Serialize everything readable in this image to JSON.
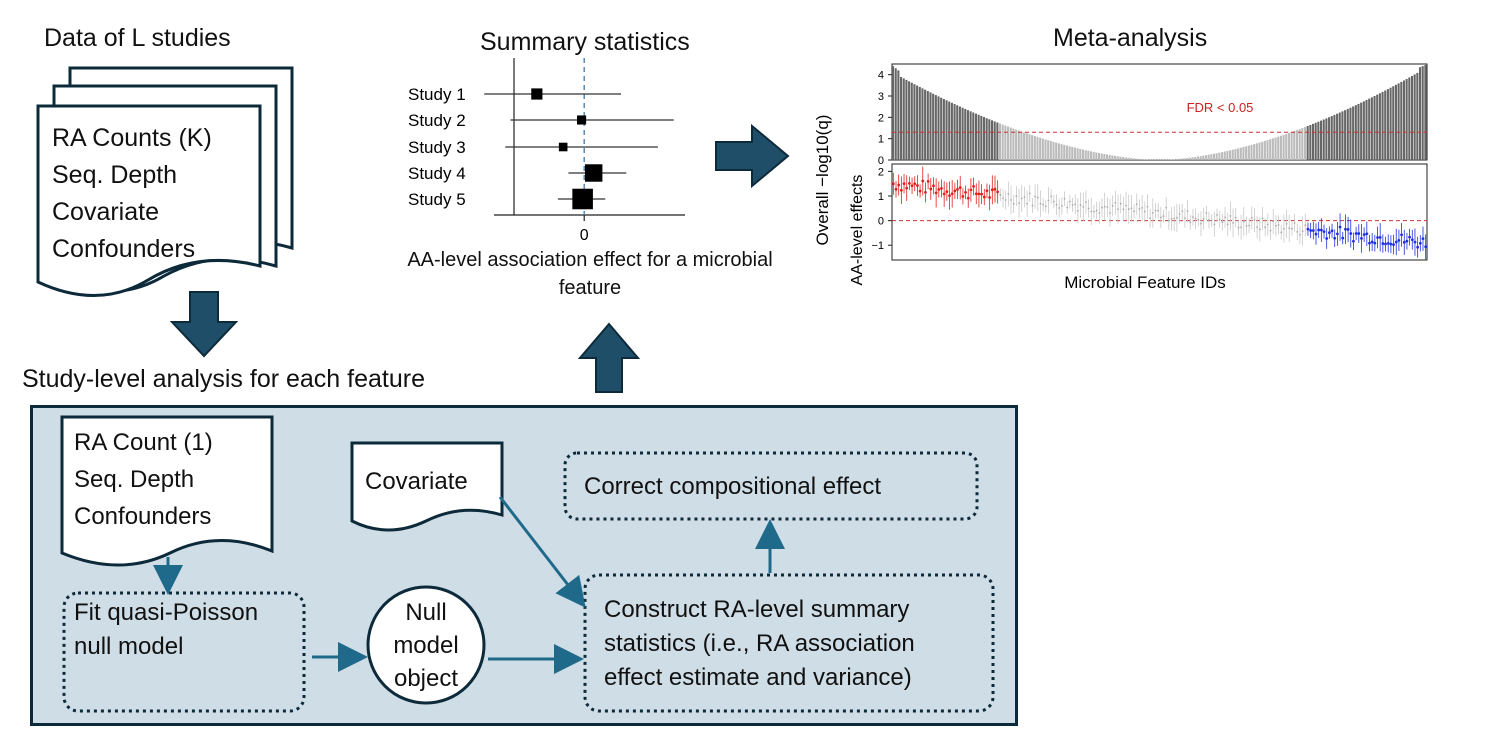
{
  "titles": {
    "data_of_studies": "Data of L studies",
    "summary_statistics": "Summary statistics",
    "meta_analysis": "Meta-analysis",
    "study_level": "Study-level analysis for each feature"
  },
  "data_stack": {
    "line1": "RA Counts (K)",
    "line2": "Seq. Depth",
    "line3": "Covariate",
    "line4": "Confounders"
  },
  "study_box": {
    "ra_doc": {
      "line1": "RA Count (1)",
      "line2": "Seq. Depth",
      "line3": "Confounders"
    },
    "covariate": "Covariate",
    "correct": "Correct compositional effect",
    "fit": {
      "line1": "Fit quasi-Poisson",
      "line2": "null model"
    },
    "null_object": {
      "line1": "Null",
      "line2": "model",
      "line3": "object"
    },
    "construct": {
      "line1": "Construct RA-level summary",
      "line2": "statistics (i.e., RA association",
      "line3": "effect estimate and variance)"
    }
  },
  "colors": {
    "panel_fill": "#cfdde6",
    "panel_border": "#0d2a3a",
    "arrow_fill": "#1f4e68",
    "connector": "#1f6a8a",
    "significant_bar": "#666666",
    "nonsignificant_bar": "#bbbbbb",
    "fdr_line": "#cc3333",
    "positive_point": "#e02020",
    "negative_point": "#2030e0"
  },
  "chart_data": [
    {
      "type": "scatter",
      "title": "Summary statistics",
      "xlabel": "AA-level association effect for a microbial feature",
      "x_ticks": [
        "0"
      ],
      "reference_line": 0,
      "categories": [
        "Study 1",
        "Study 2",
        "Study 3",
        "Study 4",
        "Study 5"
      ],
      "estimates": [
        -0.9,
        -0.05,
        -0.4,
        0.18,
        -0.03
      ],
      "ci_low": [
        -1.9,
        -1.4,
        -1.5,
        -0.3,
        -0.5
      ],
      "ci_high": [
        0.7,
        1.7,
        1.4,
        0.8,
        0.4
      ],
      "weights": [
        1,
        0.6,
        0.5,
        2.2,
        2.8
      ],
      "xlim": [
        -1.6,
        2.2
      ]
    },
    {
      "type": "bar",
      "ylabel": "Overall  −log10(q)",
      "y_ticks": [
        "4",
        "3",
        "2",
        "1",
        "0"
      ],
      "ylim": [
        0,
        4.5
      ],
      "threshold": 1.3,
      "threshold_label": "FDR < 0.05",
      "n_features": 200,
      "left_significant": 40,
      "right_significant": 45,
      "left_edge_value": 4.1,
      "right_edge_value": 4.3
    },
    {
      "type": "scatter",
      "ylabel": "AA-level effects",
      "xlabel": "Microbial Feature IDs",
      "y_ticks": [
        "2",
        "1",
        "0",
        "−1"
      ],
      "ylim": [
        -1.6,
        2.3
      ],
      "reference_line": 0,
      "n_features": 200,
      "positive_significant": 40,
      "negative_significant": 45,
      "start_value": 1.5,
      "end_value": -0.9
    }
  ]
}
